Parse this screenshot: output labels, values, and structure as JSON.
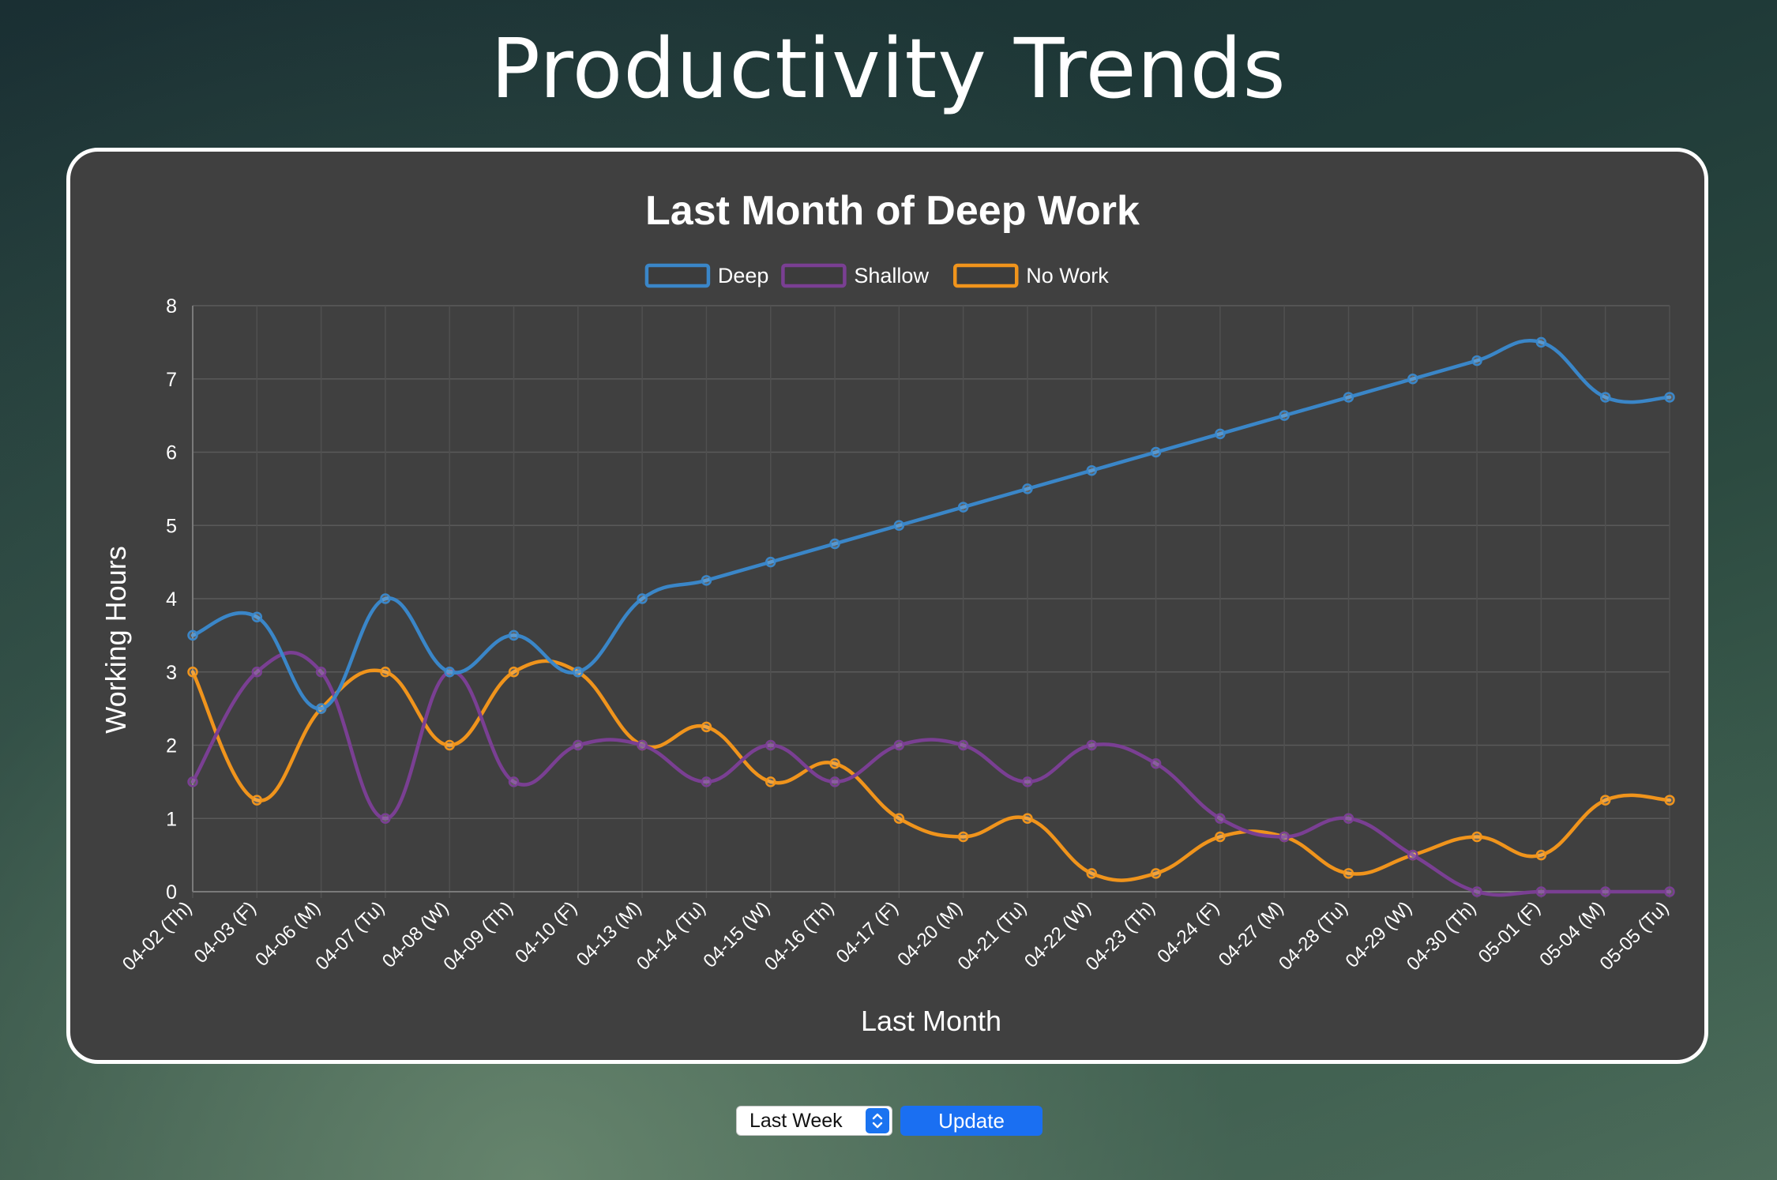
{
  "page": {
    "title": "Productivity Trends"
  },
  "controls": {
    "range_select": {
      "selected": "Last Week"
    },
    "update_label": "Update"
  },
  "chart_data": {
    "type": "line",
    "title": "Last Month of Deep Work",
    "xlabel": "Last Month",
    "ylabel": "Working Hours",
    "ylim": [
      0,
      8
    ],
    "yticks": [
      0,
      1,
      2,
      3,
      4,
      5,
      6,
      7,
      8
    ],
    "grid": true,
    "legend_position": "top",
    "categories": [
      "04-02 (Th)",
      "04-03 (F)",
      "04-06 (M)",
      "04-07 (Tu)",
      "04-08 (W)",
      "04-09 (Th)",
      "04-10 (F)",
      "04-13 (M)",
      "04-14 (Tu)",
      "04-15 (W)",
      "04-16 (Th)",
      "04-17 (F)",
      "04-20 (M)",
      "04-21 (Tu)",
      "04-22 (W)",
      "04-23 (Th)",
      "04-24 (F)",
      "04-27 (M)",
      "04-28 (Tu)",
      "04-29 (W)",
      "04-30 (Th)",
      "05-01 (F)",
      "05-04 (M)",
      "05-05 (Tu)"
    ],
    "series": [
      {
        "name": "Deep",
        "color": "#3a86c8",
        "values": [
          3.5,
          3.75,
          2.5,
          4,
          3,
          3.5,
          3,
          4,
          4.25,
          4.5,
          4.75,
          5,
          5.25,
          5.5,
          5.75,
          6,
          6.25,
          6.5,
          6.75,
          7,
          7.25,
          7.5,
          6.75,
          6.75
        ]
      },
      {
        "name": "Shallow",
        "color": "#7a3f93",
        "values": [
          1.5,
          3,
          3,
          1,
          3,
          1.5,
          2,
          2,
          1.5,
          2,
          1.5,
          2,
          2,
          1.5,
          2,
          1.75,
          1,
          0.75,
          1,
          0.5,
          0,
          0,
          0,
          0
        ]
      },
      {
        "name": "No Work",
        "color": "#f0941c",
        "values": [
          3,
          1.25,
          2.5,
          3,
          2,
          3,
          3,
          2,
          2.25,
          1.5,
          1.75,
          1,
          0.75,
          1,
          0.25,
          0.25,
          0.75,
          0.75,
          0.25,
          0.5,
          0.75,
          0.5,
          1.25,
          1.25
        ]
      }
    ]
  }
}
